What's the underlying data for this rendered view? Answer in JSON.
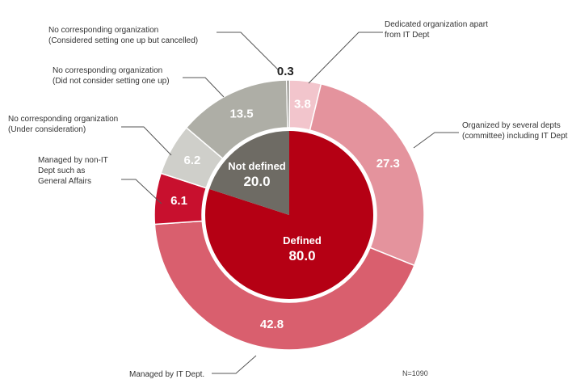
{
  "chart_data": [
    {
      "type": "pie",
      "ring": "outer",
      "categories": [
        "Dedicated organization apart from IT Dept",
        "Organized by several depts (committee) including IT Dept",
        "Managed by IT Dept.",
        "Managed by non-IT Dept such as General Affairs",
        "No corresponding organization (Under consideration)",
        "No corresponding organization (Did not consider setting one up)",
        "No corresponding organization (Considered setting one up but cancelled)"
      ],
      "values": [
        3.8,
        27.3,
        42.8,
        6.1,
        6.2,
        13.5,
        0.3
      ],
      "value_labels": [
        "3.8",
        "27.3",
        "42.8",
        "6.1",
        "6.2",
        "13.5",
        "0.3"
      ],
      "label_lines": [
        [
          "Dedicated organization apart",
          "from IT Dept"
        ],
        [
          "Organized by several depts",
          "(committee) including IT Dept"
        ],
        [
          "Managed by IT Dept."
        ],
        [
          "Managed by non-IT",
          "Dept such as",
          "General Affairs"
        ],
        [
          "No corresponding organization",
          "(Under consideration)"
        ],
        [
          "No corresponding organization",
          "(Did not consider setting one up)"
        ],
        [
          "No corresponding organization",
          "(Considered setting one up but cancelled)"
        ]
      ],
      "colors": [
        "#f2c5cc",
        "#e4939d",
        "#d95f6e",
        "#c8102e",
        "#cfcfca",
        "#aeaea6",
        "#6d6a63"
      ]
    },
    {
      "type": "pie",
      "ring": "inner",
      "categories": [
        "Defined",
        "Not defined"
      ],
      "values": [
        80.0,
        20.0
      ],
      "value_labels": [
        "80.0",
        "20.0"
      ],
      "colors": [
        "#b50014",
        "#6e6b64"
      ]
    }
  ],
  "note": "N=1090"
}
